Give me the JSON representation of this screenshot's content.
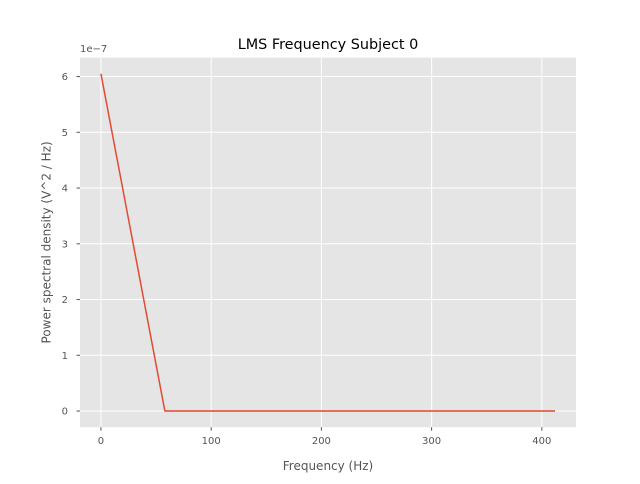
{
  "chart_data": {
    "type": "line",
    "title": "LMS Frequency Subject 0",
    "xlabel": "Frequency (Hz)",
    "ylabel": "Power spectral density (V^2 / Hz)",
    "y_offset_label": "1e−7",
    "y_scale_exponent": -7,
    "xlim": [
      -19,
      431
    ],
    "ylim": [
      -2.9e-08,
      6.34e-07
    ],
    "x_ticks": [
      0,
      100,
      200,
      300,
      400
    ],
    "x_tick_labels": [
      "0",
      "100",
      "200",
      "300",
      "400"
    ],
    "y_ticks": [
      0,
      1e-07,
      2e-07,
      3e-07,
      4e-07,
      5e-07,
      6e-07
    ],
    "y_tick_labels": [
      "0",
      "1",
      "2",
      "3",
      "4",
      "5",
      "6"
    ],
    "grid": true,
    "style": "ggplot",
    "series": [
      {
        "color": "#e24a33",
        "x": [
          0,
          58,
          412
        ],
        "y": [
          6.05e-07,
          0,
          0
        ]
      }
    ]
  }
}
